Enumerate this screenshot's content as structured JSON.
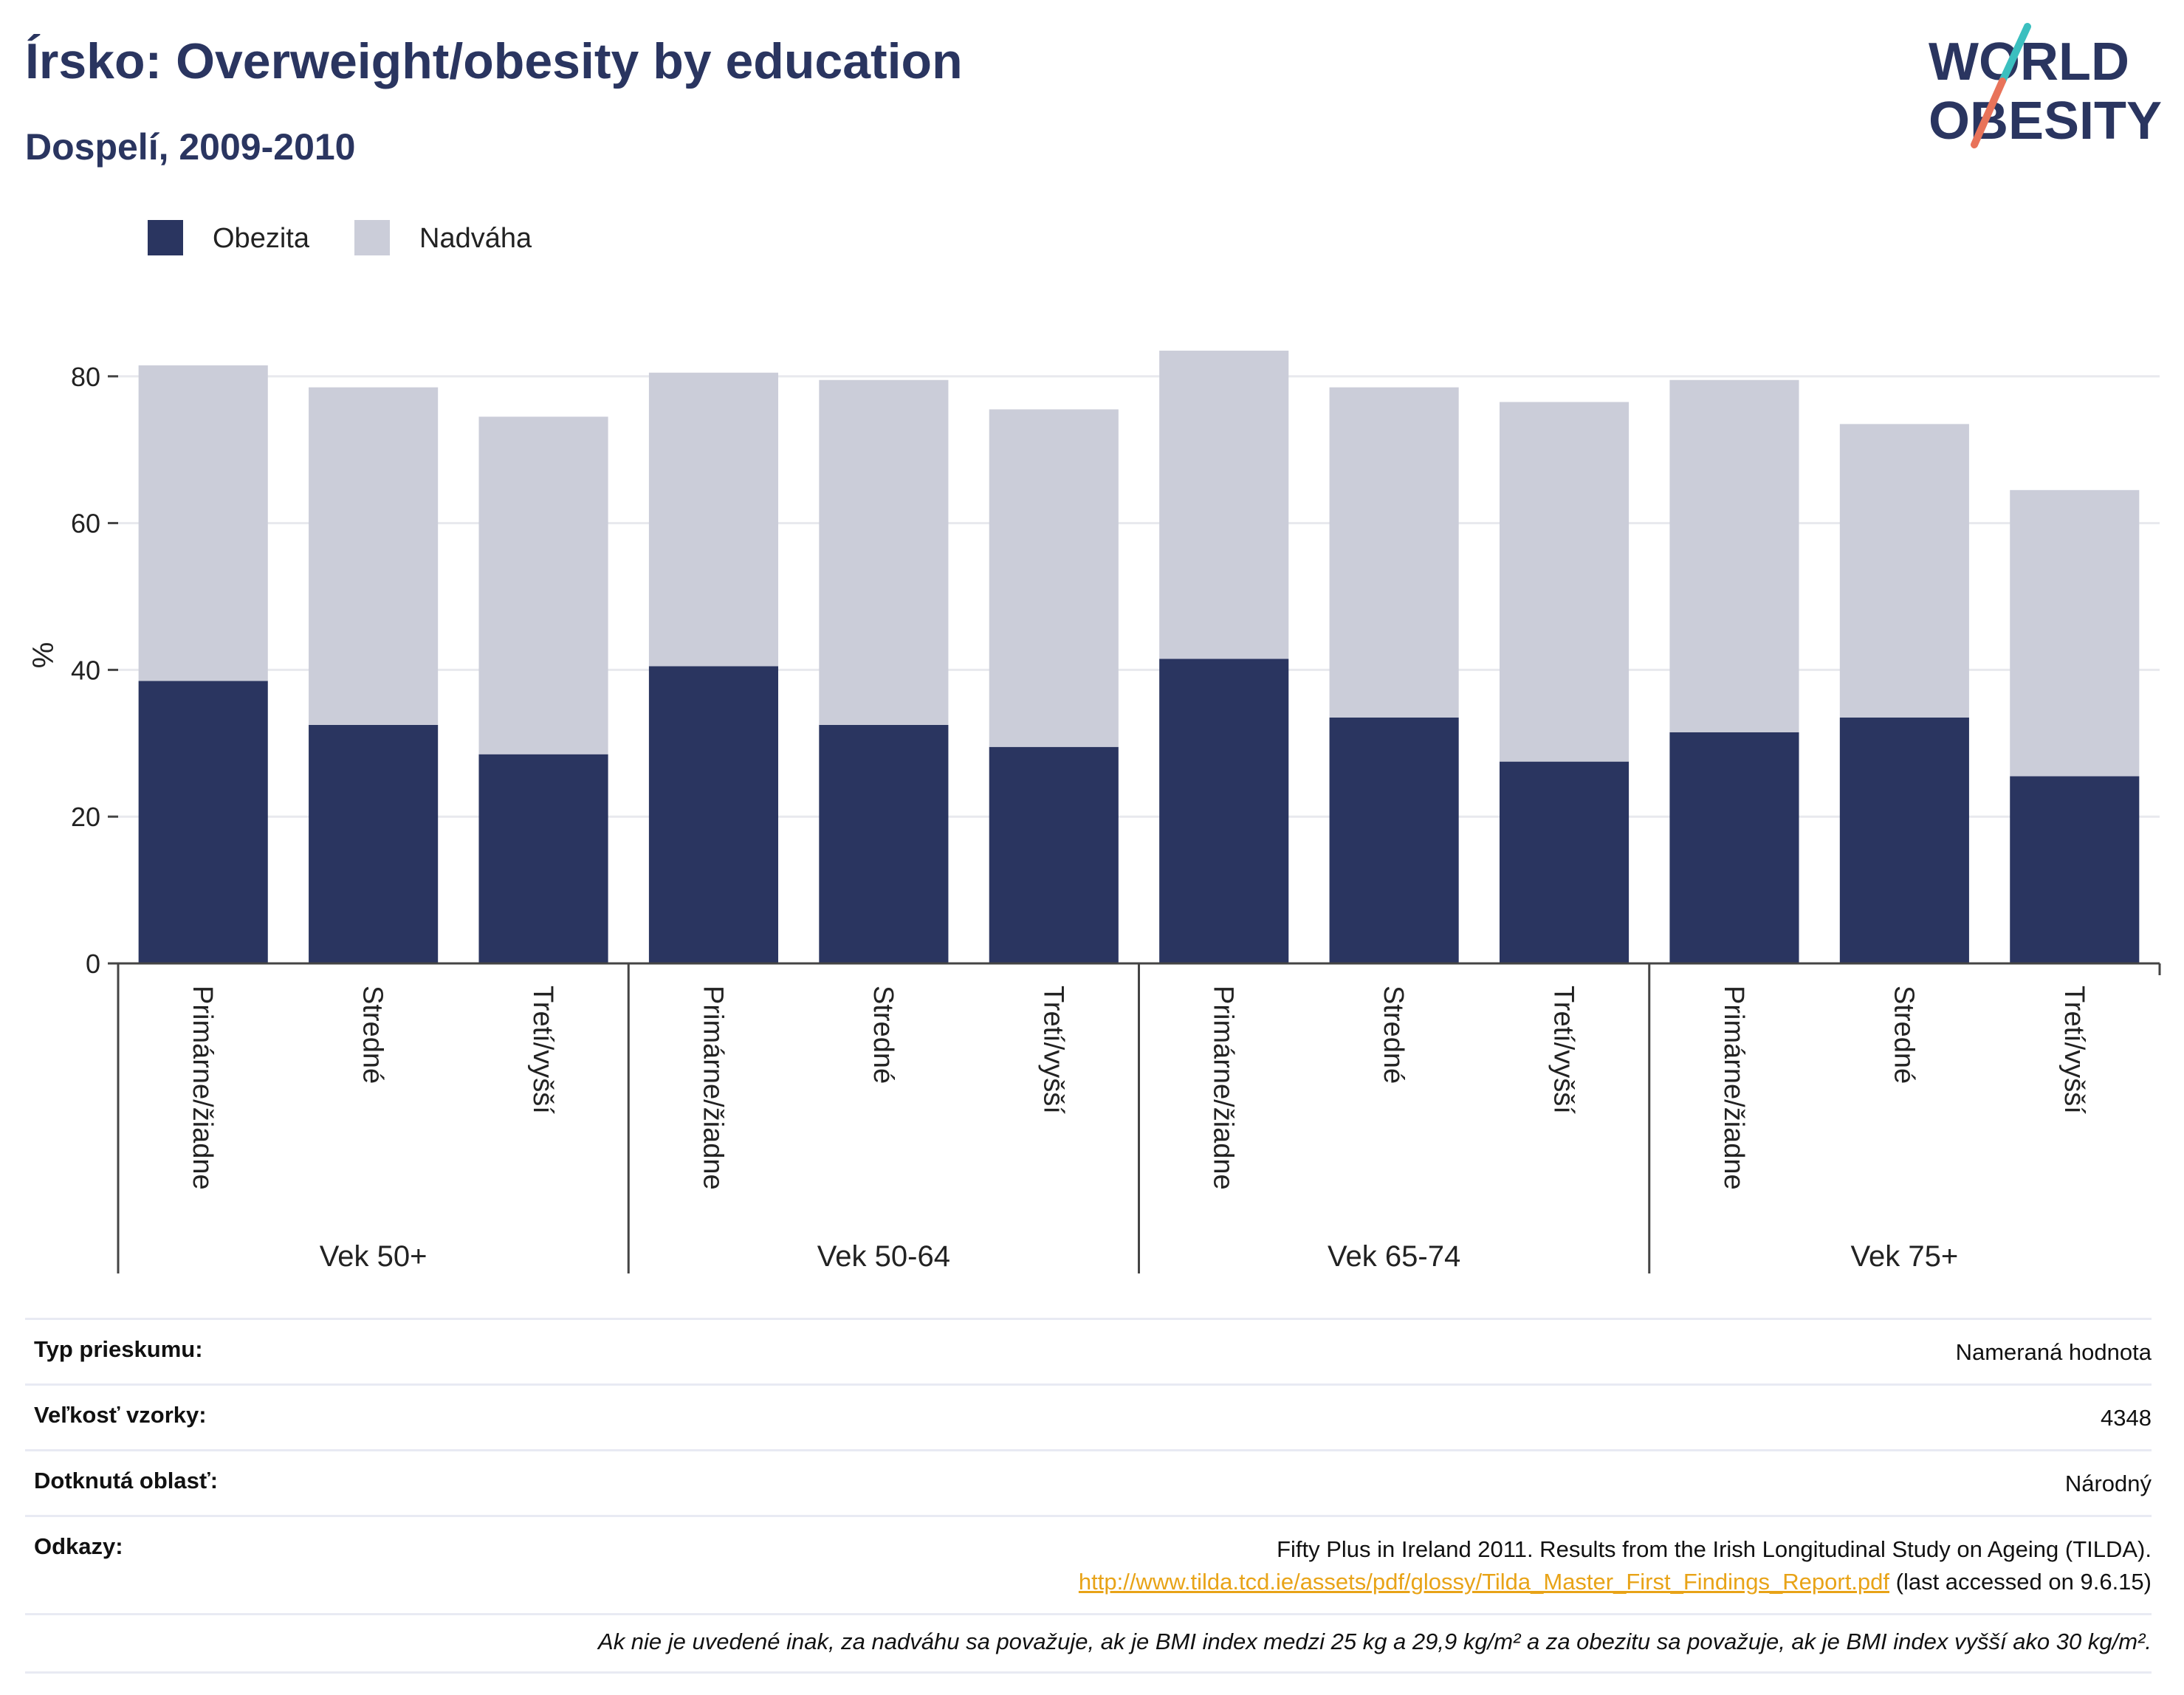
{
  "header": {
    "title": "Írsko: Overweight/obesity by education",
    "subtitle": "Dospelí, 2009-2010"
  },
  "logo": {
    "line1": "WORLD",
    "line2": "OBESITY",
    "colors": {
      "text": "#2a3560",
      "slash_top": "#3bbfbf",
      "slash_bottom": "#e8735a"
    }
  },
  "colors": {
    "obesity": "#2a3560",
    "overweight": "#cbcdd9",
    "grid": "#e8e9ee",
    "axis": "#444444"
  },
  "chart_data": {
    "type": "bar",
    "stacked": true,
    "ylabel": "%",
    "ylim": [
      0,
      84
    ],
    "yticks": [
      0,
      20,
      40,
      60,
      80
    ],
    "grid": true,
    "legend_position": "top-left",
    "categories": [
      "Primárne/žiadne",
      "Stredné",
      "Tretí/vyšší",
      "Primárne/žiadne",
      "Stredné",
      "Tretí/vyšší",
      "Primárne/žiadne",
      "Stredné",
      "Tretí/vyšší",
      "Primárne/žiadne",
      "Stredné",
      "Tretí/vyšší"
    ],
    "groups": [
      {
        "label": "Vek 50+",
        "start": 0,
        "count": 3
      },
      {
        "label": "Vek 50-64",
        "start": 3,
        "count": 3
      },
      {
        "label": "Vek 65-74",
        "start": 6,
        "count": 3
      },
      {
        "label": "Vek 75+",
        "start": 9,
        "count": 3
      }
    ],
    "series": [
      {
        "name": "Obezita",
        "color": "#2a3560",
        "values": [
          38.5,
          32.5,
          28.5,
          40.5,
          32.5,
          29.5,
          41.5,
          33.5,
          27.5,
          31.5,
          33.5,
          25.5
        ]
      },
      {
        "name": "Nadváha",
        "color": "#cbcdd9",
        "values": [
          43,
          46,
          46,
          40,
          47,
          46,
          42,
          45,
          49,
          48,
          40,
          39
        ]
      }
    ]
  },
  "info": {
    "survey_type_label": "Typ prieskumu:",
    "survey_type_value": "Nameraná hodnota",
    "sample_size_label": "Veľkosť vzorky:",
    "sample_size_value": "4348",
    "area_label": "Dotknutá oblasť:",
    "area_value": "Národný",
    "references_label": "Odkazy:",
    "references_text": "Fifty Plus in Ireland 2011. Results from the Irish Longitudinal Study on Ageing (TILDA).",
    "references_link": "http://www.tilda.tcd.ie/assets/pdf/glossy/Tilda_Master_First_Findings_Report.pdf",
    "references_accessed": " (last accessed on 9.6.15)",
    "footnote": "Ak nie je uvedené inak, za nadváhu sa považuje, ak je BMI index medzi 25 kg a 29,9 kg/m² a za obezitu sa považuje, ak je BMI index vyšší ako 30 kg/m²."
  }
}
